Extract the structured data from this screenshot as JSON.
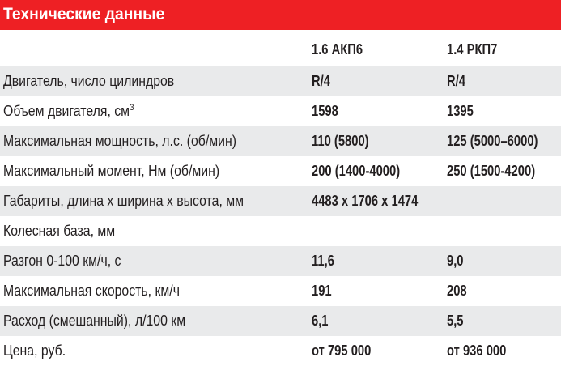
{
  "title": "Технические данные",
  "columns": [
    "1.6 АКП6",
    "1.4 РКП7"
  ],
  "rows": [
    {
      "label": "Двигатель, число цилиндров",
      "v1": "R/4",
      "v2": "R/4"
    },
    {
      "label": "Объем двигателя, см",
      "sup": "3",
      "v1": "1598",
      "v2": "1395"
    },
    {
      "label": "Максимальная мощность, л.с. (об/мин)",
      "v1": "110 (5800)",
      "v2": "125 (5000–6000)"
    },
    {
      "label": "Максимальный момент, Нм (об/мин)",
      "v1": "200 (1400-4000)",
      "v2": "250 (1500-4200)"
    },
    {
      "label": "Габариты, длина x ширина x высота, мм",
      "v1": "4483 x 1706 x 1474",
      "v2": ""
    },
    {
      "label": "Колесная база, мм",
      "v1": "",
      "v2": ""
    },
    {
      "label": "Разгон 0-100 км/ч, с",
      "v1": "11,6",
      "v2": "9,0"
    },
    {
      "label": "Максимальная скорость, км/ч",
      "v1": "191",
      "v2": "208"
    },
    {
      "label": "Расход (смешанный), л/100 км",
      "v1": "6,1",
      "v2": "5,5"
    },
    {
      "label": "Цена, руб.",
      "v1": "от 795 000",
      "v2": "от 936 000"
    }
  ],
  "colors": {
    "accent": "#ee2024",
    "stripe": "#e9eaeb",
    "text": "#231f20"
  }
}
